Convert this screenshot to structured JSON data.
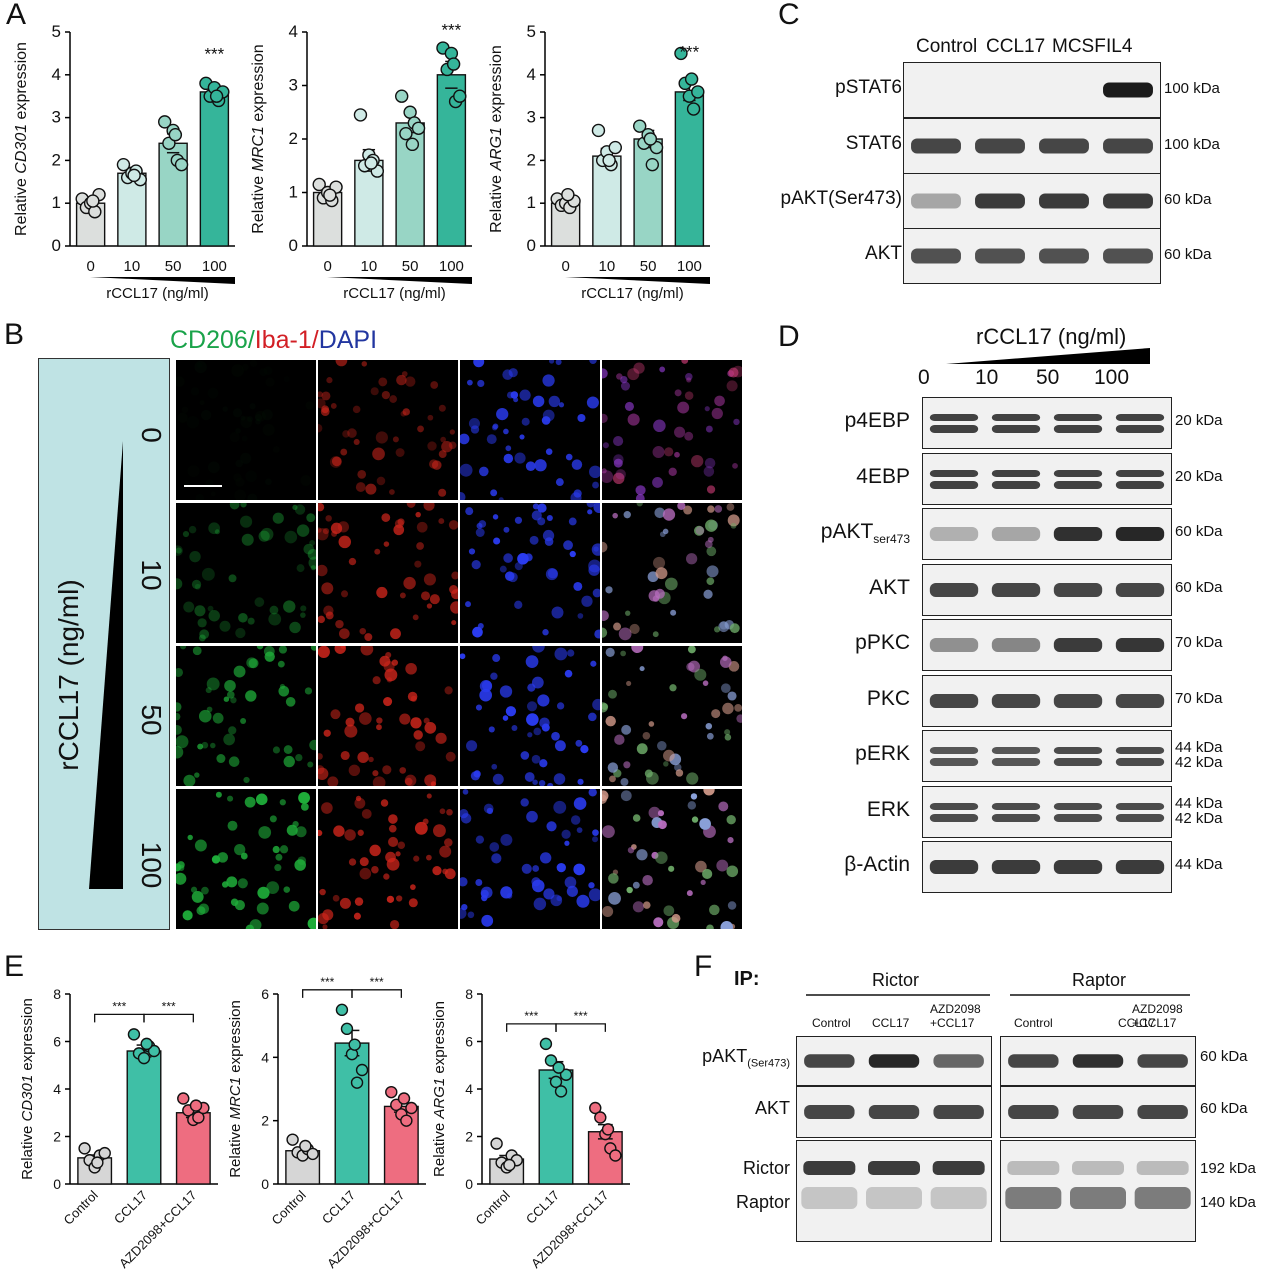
{
  "panels": {
    "A": "A",
    "B": "B",
    "C": "C",
    "D": "D",
    "E": "E",
    "F": "F"
  },
  "colors": {
    "c0": "#dcdfdd",
    "c10": "#cfeae6",
    "c50": "#98d5c5",
    "c100": "#35b59a",
    "control": "#d6d6d6",
    "ccl17": "#3fbfa6",
    "azd": "#ee6d80",
    "panelB_bg": "#bfe3e4"
  },
  "panelA": {
    "xlabel": "rCCL17 (ng/ml)",
    "charts": [
      {
        "ylabel_prefix": "Relative ",
        "ylabel_gene": "CD301",
        "ylabel_suffix": " expression",
        "ylim": [
          0,
          5
        ],
        "yticks": [
          "0",
          "1",
          "2",
          "3",
          "4",
          "5"
        ],
        "chart_data": {
          "type": "bar",
          "categories": [
            "0",
            "10",
            "50",
            "100"
          ],
          "values": [
            1.0,
            1.7,
            2.4,
            3.6
          ],
          "errors": [
            0.1,
            0.12,
            0.22,
            0.15
          ],
          "points": [
            [
              1.1,
              0.9,
              1.0,
              0.8,
              1.2,
              1.05
            ],
            [
              1.9,
              1.6,
              1.7,
              1.75,
              1.55,
              1.65
            ],
            [
              2.9,
              2.4,
              2.7,
              2.0,
              1.9,
              2.6
            ],
            [
              3.8,
              3.5,
              3.7,
              3.4,
              3.6,
              3.5
            ]
          ],
          "sig": [
            "",
            "",
            "",
            "***"
          ]
        }
      },
      {
        "ylabel_prefix": "Relative ",
        "ylabel_gene": "MRC1",
        "ylabel_suffix": " expression",
        "ylim": [
          0,
          4
        ],
        "yticks": [
          "0",
          "1",
          "2",
          "3",
          "4"
        ],
        "chart_data": {
          "type": "bar",
          "categories": [
            "0",
            "10",
            "50",
            "100"
          ],
          "values": [
            1.0,
            1.6,
            2.3,
            3.2
          ],
          "errors": [
            0.1,
            0.2,
            0.18,
            0.25
          ],
          "points": [
            [
              1.15,
              0.9,
              1.0,
              0.85,
              1.1,
              0.95
            ],
            [
              2.45,
              1.5,
              1.7,
              1.6,
              1.4,
              1.55
            ],
            [
              2.8,
              2.1,
              2.5,
              2.3,
              2.2,
              1.9
            ],
            [
              3.7,
              3.3,
              3.6,
              2.7,
              2.8,
              3.4
            ]
          ],
          "sig": [
            "",
            "",
            "",
            "***"
          ]
        }
      },
      {
        "ylabel_prefix": "Relative ",
        "ylabel_gene": "ARG1",
        "ylabel_suffix": " expression",
        "ylim": [
          0,
          5
        ],
        "yticks": [
          "0",
          "1",
          "2",
          "3",
          "4",
          "5"
        ],
        "chart_data": {
          "type": "bar",
          "categories": [
            "0",
            "10",
            "50",
            "100"
          ],
          "values": [
            1.0,
            2.1,
            2.5,
            3.6
          ],
          "errors": [
            0.07,
            0.18,
            0.2,
            0.2
          ],
          "points": [
            [
              1.1,
              0.95,
              1.0,
              0.9,
              1.05,
              1.2
            ],
            [
              2.7,
              2.0,
              2.2,
              1.9,
              2.3,
              2.0
            ],
            [
              2.8,
              2.4,
              2.6,
              1.9,
              2.3,
              2.5
            ],
            [
              4.5,
              3.8,
              3.5,
              3.2,
              3.6,
              3.9
            ]
          ],
          "sig": [
            "",
            "",
            "",
            "***"
          ]
        }
      }
    ]
  },
  "panelB": {
    "title_cd206": "CD206/",
    "title_iba": "Iba-1/",
    "title_dapi": "DAPI",
    "side_label": "rCCL17 (ng/ml)",
    "rows": [
      "0",
      "10",
      "50",
      "100"
    ]
  },
  "panelC": {
    "lanes": [
      "Control",
      "CCL17",
      "MCSF",
      "IL4"
    ],
    "rows": [
      {
        "label": "pSTAT6",
        "kda": "100 kDa",
        "bands": [
          0,
          0,
          0,
          1
        ]
      },
      {
        "label": "STAT6",
        "kda": "100 kDa",
        "bands": [
          0.8,
          0.8,
          0.8,
          0.8
        ]
      },
      {
        "label": "pAKT(Ser473)",
        "kda": "60 kDa",
        "bands": [
          0.35,
          0.85,
          0.85,
          0.85
        ]
      },
      {
        "label": "AKT",
        "kda": "60 kDa",
        "bands": [
          0.75,
          0.75,
          0.75,
          0.75
        ]
      }
    ]
  },
  "panelD": {
    "title": "rCCL17 (ng/ml)",
    "lanes": [
      "0",
      "10",
      "50",
      "100"
    ],
    "rows": [
      {
        "label": "p4EBP",
        "kda": "20 kDa",
        "kda2": ""
      },
      {
        "label": "4EBP",
        "kda": "20 kDa",
        "kda2": ""
      },
      {
        "label": "pAKT",
        "sub": "ser473",
        "kda": "60 kDa",
        "kda2": ""
      },
      {
        "label": "AKT",
        "kda": "60 kDa",
        "kda2": ""
      },
      {
        "label": "pPKC",
        "kda": "70 kDa",
        "kda2": ""
      },
      {
        "label": "PKC",
        "kda": "70 kDa",
        "kda2": ""
      },
      {
        "label": "pERK",
        "kda": "44 kDa",
        "kda2": "42 kDa"
      },
      {
        "label": "ERK",
        "kda": "44 kDa",
        "kda2": "42 kDa"
      },
      {
        "label": "β-Actin",
        "kda": "44 kDa",
        "kda2": ""
      }
    ]
  },
  "panelE": {
    "categories": [
      "Control",
      "CCL17",
      "AZD2098+CCL17"
    ],
    "charts": [
      {
        "ylabel_prefix": "Relative ",
        "ylabel_gene": "CD301",
        "ylabel_suffix": " expression",
        "ylim": [
          0,
          8
        ],
        "yticks": [
          "0",
          "2",
          "4",
          "6",
          "8"
        ],
        "chart_data": {
          "type": "bar",
          "categories": [
            "Control",
            "CCL17",
            "AZD2098+CCL17"
          ],
          "values": [
            1.1,
            5.6,
            3.0
          ],
          "errors": [
            0.12,
            0.25,
            0.2
          ],
          "points": [
            [
              1.5,
              1.0,
              0.7,
              1.2,
              1.3,
              0.9
            ],
            [
              6.3,
              5.5,
              5.3,
              5.8,
              5.6,
              5.9
            ],
            [
              3.6,
              3.1,
              2.7,
              2.8,
              3.2,
              3.3
            ]
          ],
          "sig": [
            "***",
            "***"
          ]
        }
      },
      {
        "ylabel_prefix": "Relative ",
        "ylabel_gene": "MRC1",
        "ylabel_suffix": " expression",
        "ylim": [
          0,
          6
        ],
        "yticks": [
          "0",
          "2",
          "4",
          "6"
        ],
        "chart_data": {
          "type": "bar",
          "categories": [
            "Control",
            "CCL17",
            "AZD2098+CCL17"
          ],
          "values": [
            1.05,
            4.45,
            2.45
          ],
          "errors": [
            0.1,
            0.4,
            0.18
          ],
          "points": [
            [
              1.4,
              1.0,
              0.9,
              1.1,
              0.95,
              1.2
            ],
            [
              5.5,
              4.9,
              4.1,
              3.2,
              3.6,
              4.4
            ],
            [
              2.9,
              2.5,
              2.2,
              2.0,
              2.4,
              2.7
            ]
          ],
          "sig": [
            "***",
            "***"
          ]
        }
      },
      {
        "ylabel_prefix": "Relative ",
        "ylabel_gene": "ARG1",
        "ylabel_suffix": " expression",
        "ylim": [
          0,
          8
        ],
        "yticks": [
          "0",
          "2",
          "4",
          "6",
          "8"
        ],
        "chart_data": {
          "type": "bar",
          "categories": [
            "Control",
            "CCL17",
            "AZD2098+CCL17"
          ],
          "values": [
            1.05,
            4.8,
            2.2
          ],
          "errors": [
            0.15,
            0.35,
            0.3
          ],
          "points": [
            [
              1.7,
              0.9,
              0.7,
              1.2,
              1.0,
              0.8
            ],
            [
              5.9,
              5.2,
              4.3,
              3.9,
              4.6,
              4.9
            ],
            [
              3.2,
              2.8,
              2.1,
              1.5,
              1.2,
              2.3
            ]
          ],
          "sig": [
            "***",
            "***"
          ]
        }
      }
    ]
  },
  "panelF": {
    "ip_label": "IP:",
    "group1": "Rictor",
    "group2": "Raptor",
    "lanes": [
      "Control",
      "CCL17",
      "AZD2098\n+CCL17"
    ],
    "lane_ctrl": "Control",
    "lane_ccl": "CCL17",
    "lane_azd1": "AZD2098",
    "lane_azd2": "+CCL17",
    "rows": [
      {
        "label": "pAKT",
        "sub": "(Ser473)",
        "kda": "60 kDa"
      },
      {
        "label": "AKT",
        "kda": "60 kDa"
      },
      {
        "label": "Rictor",
        "kda": "192 kDa"
      },
      {
        "label": "Raptor",
        "kda": "140 kDa"
      }
    ]
  }
}
